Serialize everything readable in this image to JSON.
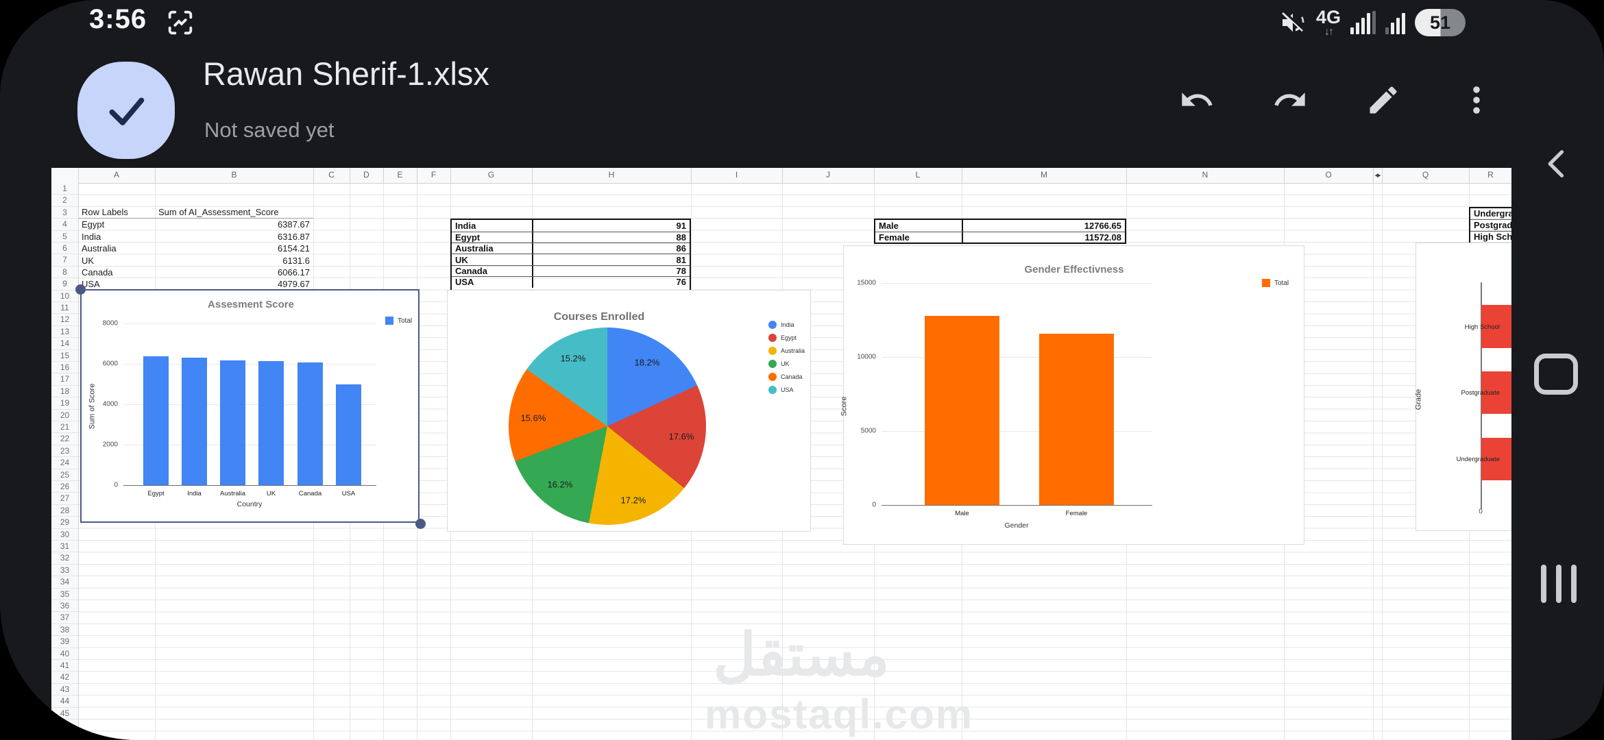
{
  "status_bar": {
    "time": "3:56",
    "network_label": "4G",
    "battery_percent": "51",
    "battery_color_filled": "#ededee",
    "battery_color_empty": "#84878c"
  },
  "title_bar": {
    "title": "Rawan Sherif-1.xlsx",
    "subtitle": "Not saved yet",
    "check_accent": "#c7d5fa"
  },
  "sheet": {
    "column_letters": [
      "A",
      "B",
      "C",
      "D",
      "E",
      "F",
      "G",
      "H",
      "I",
      "J",
      "L",
      "M",
      "N",
      "O",
      "Q",
      "R"
    ],
    "hidden_column_marker": "◂▸",
    "row_count": 46,
    "tables": {
      "pivot_country": {
        "header": [
          "Row Labels",
          "Sum of AI_Assessment_Score"
        ],
        "rows": [
          [
            "Egypt",
            "6387.67"
          ],
          [
            "India",
            "6316.87"
          ],
          [
            "Australia",
            "6154.21"
          ],
          [
            "UK",
            "6131.6"
          ],
          [
            "Canada",
            "6066.17"
          ],
          [
            "USA",
            "4979.67"
          ]
        ]
      },
      "country_scores": {
        "rows": [
          [
            "India",
            "91"
          ],
          [
            "Egypt",
            "88"
          ],
          [
            "Australia",
            "86"
          ],
          [
            "UK",
            "81"
          ],
          [
            "Canada",
            "78"
          ],
          [
            "USA",
            "76"
          ]
        ]
      },
      "gender_totals": {
        "rows": [
          [
            "Male",
            "12766.65"
          ],
          [
            "Female",
            "11572.08"
          ]
        ]
      },
      "grade_labels": {
        "rows": [
          "Undergrad",
          "Postgradu",
          "High Scho"
        ]
      }
    }
  },
  "chart_data": [
    {
      "type": "bar",
      "title": "Assesment Score",
      "xlabel": "Country",
      "ylabel": "Sum of Score",
      "categories": [
        "Egypt",
        "India",
        "Australia",
        "UK",
        "Canada",
        "USA"
      ],
      "values": [
        6387.67,
        6316.87,
        6154.21,
        6131.6,
        6066.17,
        4979.67
      ],
      "ylim": [
        0,
        8000
      ],
      "yticks": [
        0,
        2000,
        4000,
        6000,
        8000
      ],
      "legend": [
        {
          "label": "Total",
          "color": "#4285f4"
        }
      ],
      "bar_color": "#4285f4",
      "grid": true,
      "legend_position": "top-right",
      "selected": true
    },
    {
      "type": "pie",
      "title": "Courses Enrolled",
      "slices": [
        {
          "label": "India",
          "pct": 18.2,
          "color": "#4285f4"
        },
        {
          "label": "Egypt",
          "pct": 17.6,
          "color": "#db4437"
        },
        {
          "label": "Australia",
          "pct": 17.2,
          "color": "#f5b400"
        },
        {
          "label": "UK",
          "pct": 16.2,
          "color": "#34a853"
        },
        {
          "label": "Canada",
          "pct": 15.6,
          "color": "#ff6d01"
        },
        {
          "label": "USA",
          "pct": 15.2,
          "color": "#46bdc6"
        }
      ],
      "legend_position": "right"
    },
    {
      "type": "bar",
      "title": "Gender Effectivness",
      "xlabel": "Gender",
      "ylabel": "Score",
      "categories": [
        "Male",
        "Female"
      ],
      "values": [
        12766.65,
        11572.08
      ],
      "ylim": [
        0,
        15000
      ],
      "yticks": [
        0,
        5000,
        10000,
        15000
      ],
      "legend": [
        {
          "label": "Total",
          "color": "#ff6d01"
        }
      ],
      "bar_color": "#ff6d01",
      "grid": true,
      "legend_position": "top-right"
    },
    {
      "type": "bar-horizontal",
      "title": "",
      "ylabel": "Grade",
      "categories": [
        "High School",
        "Postgraduate",
        "Undergraduate"
      ],
      "xticks": [
        0
      ],
      "bar_color": "#ea4335",
      "note": "right portion cut off by screen edge"
    }
  ],
  "watermark": {
    "line1": "مستقل",
    "line2": "mostaql.com"
  },
  "nav_bar": {
    "back": "back",
    "home": "home",
    "recents": "recents"
  }
}
